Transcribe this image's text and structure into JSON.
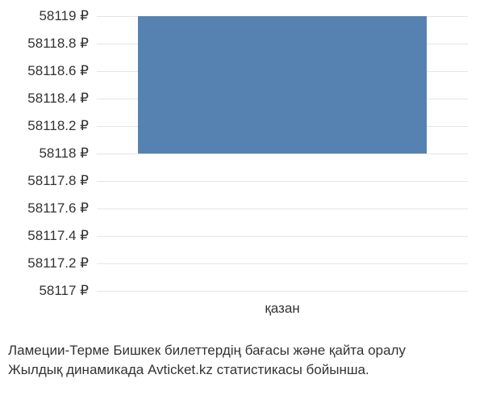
{
  "chart": {
    "type": "bar",
    "y_ticks": [
      "58119 ₽",
      "58118.8 ₽",
      "58118.6 ₽",
      "58118.4 ₽",
      "58118.2 ₽",
      "58118 ₽",
      "58117.8 ₽",
      "58117.6 ₽",
      "58117.4 ₽",
      "58117.2 ₽",
      "58117 ₽"
    ],
    "y_min": 58117,
    "y_max": 58119,
    "y_step": 0.2,
    "x_labels": [
      "қазан"
    ],
    "bars": [
      {
        "category": "қазан",
        "y_start": 58118,
        "y_end": 58119,
        "color": "#5582b0"
      }
    ],
    "bar_width_ratio": 0.78,
    "grid_color": "#e5e5e5",
    "background_color": "#ffffff",
    "tick_fontsize": 17,
    "text_color": "#333333"
  },
  "caption": {
    "line1": "Ламеции-Терме Бишкек билеттердің бағасы және қайта оралу",
    "line2": "Жылдық динамикада Avticket.kz статистикасы бойынша."
  }
}
